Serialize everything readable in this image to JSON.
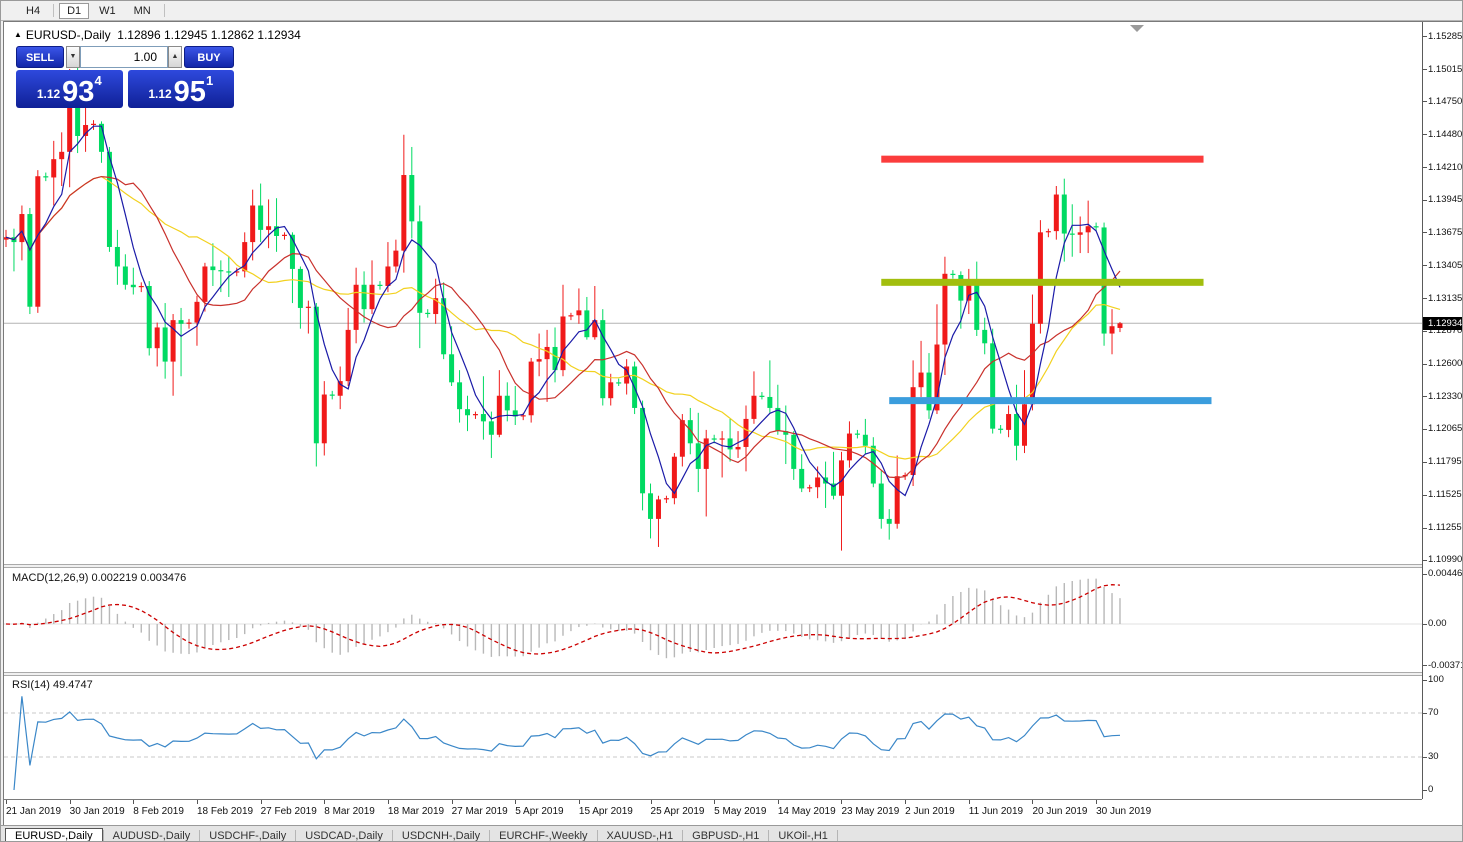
{
  "toolbar": {
    "items": [
      "H4",
      "D1",
      "W1",
      "MN"
    ],
    "active": "D1"
  },
  "trade": {
    "sell_label": "SELL",
    "buy_label": "BUY",
    "lot": "1.00",
    "bid": {
      "prefix": "1.12",
      "big": "93",
      "sup": "4"
    },
    "ask": {
      "prefix": "1.12",
      "big": "95",
      "sup": "1"
    }
  },
  "chart_data": {
    "type": "candlestick",
    "symbol": "EURUSD-,Daily",
    "title_ohlc": "1.12896 1.12945 1.12862 1.12934",
    "current_price": "1.12934",
    "price_axis_labels": [
      "1.15285",
      "1.15015",
      "1.14750",
      "1.14480",
      "1.14210",
      "1.13945",
      "1.13675",
      "1.13405",
      "1.13135",
      "1.12870",
      "1.12600",
      "1.12330",
      "1.12065",
      "1.11795",
      "1.11525",
      "1.11255",
      "1.10990"
    ],
    "date_labels": [
      {
        "i": 0,
        "t": "21 Jan 2019"
      },
      {
        "i": 8,
        "t": "30 Jan 2019"
      },
      {
        "i": 16,
        "t": "8 Feb 2019"
      },
      {
        "i": 24,
        "t": "18 Feb 2019"
      },
      {
        "i": 32,
        "t": "27 Feb 2019"
      },
      {
        "i": 40,
        "t": "8 Mar 2019"
      },
      {
        "i": 48,
        "t": "18 Mar 2019"
      },
      {
        "i": 56,
        "t": "27 Mar 2019"
      },
      {
        "i": 64,
        "t": "5 Apr 2019"
      },
      {
        "i": 72,
        "t": "15 Apr 2019"
      },
      {
        "i": 81,
        "t": "25 Apr 2019"
      },
      {
        "i": 89,
        "t": "5 May 2019"
      },
      {
        "i": 97,
        "t": "14 May 2019"
      },
      {
        "i": 105,
        "t": "23 May 2019"
      },
      {
        "i": 113,
        "t": "2 Jun 2019"
      },
      {
        "i": 121,
        "t": "11 Jun 2019"
      },
      {
        "i": 129,
        "t": "20 Jun 2019"
      },
      {
        "i": 137,
        "t": "30 Jun 2019"
      }
    ],
    "colors": {
      "up_candle": "#f01a1a",
      "down_candle": "#00da62",
      "ma_fast": "#1b1ba8",
      "ma_mid": "#c9312c",
      "ma_slow": "#f2d11f",
      "band_red": "#fb3c3c",
      "band_olive": "#a2be0e",
      "band_blue": "#3b9ddd",
      "current_line": "#b4b4b4",
      "macd_hist": "#b8b8b8",
      "macd_signal": "#cc0000",
      "rsi_line": "#3a87c8"
    },
    "moving_averages": [
      {
        "period": 21,
        "color_key": "ma_slow"
      },
      {
        "period": 13,
        "color_key": "ma_mid"
      },
      {
        "period": 5,
        "color_key": "ma_fast"
      }
    ],
    "bands": [
      {
        "price": 1.1428,
        "i1": 110,
        "i2": 150.5,
        "color_key": "band_red"
      },
      {
        "price": 1.1327,
        "i1": 110,
        "i2": 150.5,
        "color_key": "band_olive"
      },
      {
        "price": 1.123,
        "i1": 111,
        "i2": 151.5,
        "color_key": "band_blue"
      }
    ],
    "candles": [
      [
        1.1362,
        1.137,
        1.1356,
        1.1364
      ],
      [
        1.1364,
        1.1371,
        1.1336,
        1.136
      ],
      [
        1.136,
        1.139,
        1.1345,
        1.1383
      ],
      [
        1.1383,
        1.1388,
        1.1301,
        1.1307
      ],
      [
        1.1307,
        1.1419,
        1.1302,
        1.1414
      ],
      [
        1.1414,
        1.1417,
        1.141,
        1.1413
      ],
      [
        1.1413,
        1.1443,
        1.139,
        1.1428
      ],
      [
        1.1428,
        1.145,
        1.1406,
        1.1434
      ],
      [
        1.1434,
        1.1502,
        1.1405,
        1.1481
      ],
      [
        1.1481,
        1.1514,
        1.1433,
        1.1447
      ],
      [
        1.1447,
        1.1484,
        1.1434,
        1.1456
      ],
      [
        1.1456,
        1.146,
        1.1452,
        1.1457
      ],
      [
        1.1457,
        1.1459,
        1.1425,
        1.1434
      ],
      [
        1.1434,
        1.1438,
        1.1352,
        1.1356
      ],
      [
        1.1356,
        1.137,
        1.1325,
        1.134
      ],
      [
        1.134,
        1.135,
        1.1321,
        1.1325
      ],
      [
        1.1325,
        1.1339,
        1.1317,
        1.1323
      ],
      [
        1.1323,
        1.1327,
        1.1319,
        1.1324
      ],
      [
        1.1324,
        1.1328,
        1.1267,
        1.1273
      ],
      [
        1.1273,
        1.1294,
        1.1258,
        1.129
      ],
      [
        1.129,
        1.131,
        1.1248,
        1.1262
      ],
      [
        1.1262,
        1.1301,
        1.1234,
        1.1296
      ],
      [
        1.1296,
        1.1306,
        1.125,
        1.1293
      ],
      [
        1.1293,
        1.1297,
        1.1289,
        1.1294
      ],
      [
        1.1294,
        1.1316,
        1.1275,
        1.1311
      ],
      [
        1.1311,
        1.1343,
        1.1303,
        1.134
      ],
      [
        1.134,
        1.1359,
        1.1324,
        1.1337
      ],
      [
        1.1337,
        1.1345,
        1.1319,
        1.1336
      ],
      [
        1.1336,
        1.1348,
        1.1315,
        1.1335
      ],
      [
        1.1335,
        1.1339,
        1.1332,
        1.1336
      ],
      [
        1.1336,
        1.1368,
        1.1331,
        1.136
      ],
      [
        1.136,
        1.1403,
        1.1345,
        1.139
      ],
      [
        1.139,
        1.1408,
        1.136,
        1.137
      ],
      [
        1.137,
        1.1395,
        1.1355,
        1.1373
      ],
      [
        1.1373,
        1.1396,
        1.1352,
        1.1365
      ],
      [
        1.1365,
        1.1368,
        1.1362,
        1.1366
      ],
      [
        1.1366,
        1.1368,
        1.131,
        1.1338
      ],
      [
        1.1338,
        1.134,
        1.1289,
        1.1306
      ],
      [
        1.1306,
        1.1312,
        1.1285,
        1.1307
      ],
      [
        1.1307,
        1.131,
        1.1176,
        1.1195
      ],
      [
        1.1195,
        1.1246,
        1.1185,
        1.1235
      ],
      [
        1.1235,
        1.1238,
        1.1231,
        1.1234
      ],
      [
        1.1234,
        1.1258,
        1.1223,
        1.1246
      ],
      [
        1.1246,
        1.1306,
        1.1242,
        1.1288
      ],
      [
        1.1288,
        1.1339,
        1.1277,
        1.1325
      ],
      [
        1.1325,
        1.1336,
        1.1294,
        1.1305
      ],
      [
        1.1305,
        1.1345,
        1.1301,
        1.1325
      ],
      [
        1.1325,
        1.1328,
        1.1321,
        1.1324
      ],
      [
        1.1324,
        1.136,
        1.1319,
        1.134
      ],
      [
        1.134,
        1.1362,
        1.1335,
        1.1353
      ],
      [
        1.1353,
        1.1448,
        1.1335,
        1.1415
      ],
      [
        1.1415,
        1.1438,
        1.1363,
        1.1377
      ],
      [
        1.1377,
        1.139,
        1.1273,
        1.1302
      ],
      [
        1.1302,
        1.1305,
        1.1298,
        1.1301
      ],
      [
        1.1301,
        1.133,
        1.1293,
        1.1314
      ],
      [
        1.1314,
        1.1327,
        1.1264,
        1.1268
      ],
      [
        1.1268,
        1.1291,
        1.1242,
        1.1245
      ],
      [
        1.1245,
        1.1255,
        1.1212,
        1.1223
      ],
      [
        1.1223,
        1.1234,
        1.1205,
        1.1218
      ],
      [
        1.1218,
        1.1221,
        1.1215,
        1.1219
      ],
      [
        1.1219,
        1.125,
        1.1198,
        1.1213
      ],
      [
        1.1213,
        1.1221,
        1.1183,
        1.1202
      ],
      [
        1.1202,
        1.1255,
        1.12,
        1.1234
      ],
      [
        1.1234,
        1.1245,
        1.1213,
        1.1222
      ],
      [
        1.1222,
        1.1242,
        1.121,
        1.1217
      ],
      [
        1.1217,
        1.122,
        1.1214,
        1.1218
      ],
      [
        1.1218,
        1.1265,
        1.1212,
        1.1262
      ],
      [
        1.1262,
        1.1285,
        1.125,
        1.1264
      ],
      [
        1.1264,
        1.1288,
        1.1229,
        1.1274
      ],
      [
        1.1274,
        1.129,
        1.1245,
        1.1255
      ],
      [
        1.1255,
        1.1325,
        1.125,
        1.1299
      ],
      [
        1.1299,
        1.1302,
        1.1296,
        1.13
      ],
      [
        1.13,
        1.1322,
        1.1293,
        1.1304
      ],
      [
        1.1304,
        1.1315,
        1.128,
        1.1282
      ],
      [
        1.1282,
        1.1324,
        1.128,
        1.1296
      ],
      [
        1.1296,
        1.1305,
        1.1226,
        1.1232
      ],
      [
        1.1232,
        1.1252,
        1.1226,
        1.1245
      ],
      [
        1.1245,
        1.1248,
        1.1242,
        1.1244
      ],
      [
        1.1244,
        1.1264,
        1.1235,
        1.1258
      ],
      [
        1.1258,
        1.1262,
        1.1219,
        1.1224
      ],
      [
        1.1224,
        1.123,
        1.114,
        1.1154
      ],
      [
        1.1154,
        1.1162,
        1.1117,
        1.1133
      ],
      [
        1.1133,
        1.1152,
        1.111,
        1.1149
      ],
      [
        1.1149,
        1.1152,
        1.1146,
        1.115
      ],
      [
        1.115,
        1.1187,
        1.1145,
        1.1184
      ],
      [
        1.1184,
        1.1219,
        1.1176,
        1.1214
      ],
      [
        1.1214,
        1.1224,
        1.1186,
        1.1195
      ],
      [
        1.1195,
        1.122,
        1.1155,
        1.1174
      ],
      [
        1.1174,
        1.1206,
        1.1135,
        1.1199
      ],
      [
        1.1199,
        1.1202,
        1.1195,
        1.1198
      ],
      [
        1.1198,
        1.1205,
        1.1167,
        1.1199
      ],
      [
        1.1199,
        1.1215,
        1.118,
        1.119
      ],
      [
        1.119,
        1.1205,
        1.1183,
        1.1192
      ],
      [
        1.1192,
        1.1226,
        1.1172,
        1.1215
      ],
      [
        1.1215,
        1.1254,
        1.1211,
        1.1234
      ],
      [
        1.1234,
        1.1237,
        1.1231,
        1.1233
      ],
      [
        1.1233,
        1.1263,
        1.122,
        1.1224
      ],
      [
        1.1224,
        1.1243,
        1.1202,
        1.1205
      ],
      [
        1.1205,
        1.1226,
        1.1178,
        1.1202
      ],
      [
        1.1202,
        1.1205,
        1.1165,
        1.1174
      ],
      [
        1.1174,
        1.1186,
        1.1155,
        1.1158
      ],
      [
        1.1158,
        1.1161,
        1.1155,
        1.1159
      ],
      [
        1.1159,
        1.1176,
        1.115,
        1.1167
      ],
      [
        1.1167,
        1.118,
        1.1142,
        1.1162
      ],
      [
        1.1162,
        1.1188,
        1.1149,
        1.1152
      ],
      [
        1.1152,
        1.1188,
        1.1107,
        1.1181
      ],
      [
        1.1181,
        1.1213,
        1.1175,
        1.1203
      ],
      [
        1.1203,
        1.1206,
        1.1199,
        1.1202
      ],
      [
        1.1202,
        1.1215,
        1.1186,
        1.1193
      ],
      [
        1.1193,
        1.12,
        1.1159,
        1.1162
      ],
      [
        1.1162,
        1.1173,
        1.1125,
        1.1133
      ],
      [
        1.1133,
        1.1141,
        1.1116,
        1.1129
      ],
      [
        1.1129,
        1.1185,
        1.1125,
        1.1168
      ],
      [
        1.1168,
        1.1171,
        1.1165,
        1.1169
      ],
      [
        1.1169,
        1.1263,
        1.116,
        1.1241
      ],
      [
        1.1241,
        1.1279,
        1.1233,
        1.1253
      ],
      [
        1.1253,
        1.1269,
        1.1215,
        1.1222
      ],
      [
        1.1222,
        1.1309,
        1.1219,
        1.1276
      ],
      [
        1.1276,
        1.1348,
        1.1251,
        1.1334
      ],
      [
        1.1334,
        1.1337,
        1.133,
        1.1333
      ],
      [
        1.1333,
        1.1336,
        1.1289,
        1.1312
      ],
      [
        1.1312,
        1.1338,
        1.1301,
        1.1327
      ],
      [
        1.1327,
        1.1344,
        1.1283,
        1.1288
      ],
      [
        1.1288,
        1.1298,
        1.1268,
        1.1277
      ],
      [
        1.1277,
        1.1289,
        1.1203,
        1.1207
      ],
      [
        1.1207,
        1.121,
        1.1203,
        1.1206
      ],
      [
        1.1206,
        1.1226,
        1.12,
        1.1219
      ],
      [
        1.1219,
        1.1243,
        1.1181,
        1.1193
      ],
      [
        1.1193,
        1.1255,
        1.1187,
        1.1227
      ],
      [
        1.1227,
        1.1317,
        1.1222,
        1.1293
      ],
      [
        1.1293,
        1.1378,
        1.1285,
        1.1368
      ],
      [
        1.1368,
        1.1371,
        1.1364,
        1.1369
      ],
      [
        1.1369,
        1.1406,
        1.1362,
        1.1399
      ],
      [
        1.1399,
        1.1412,
        1.1344,
        1.1367
      ],
      [
        1.1367,
        1.1391,
        1.1348,
        1.1366
      ],
      [
        1.1366,
        1.1381,
        1.1351,
        1.1368
      ],
      [
        1.1368,
        1.1394,
        1.1351,
        1.1373
      ],
      [
        1.1373,
        1.1376,
        1.1369,
        1.1372
      ],
      [
        1.1372,
        1.1376,
        1.1275,
        1.1285
      ],
      [
        1.1285,
        1.1305,
        1.1268,
        1.1291
      ],
      [
        1.12896,
        1.12945,
        1.12862,
        1.12934
      ]
    ],
    "indicators": {
      "macd": {
        "label": "MACD(12,26,9) 0.002219 0.003476",
        "axis_labels": [
          "0.004465",
          "0.00",
          "-0.003715"
        ],
        "fast": 12,
        "slow": 26,
        "signal": 9
      },
      "rsi": {
        "label": "RSI(14) 49.4747",
        "axis_labels": [
          "100",
          "70",
          "30",
          "0"
        ],
        "levels": [
          70,
          30
        ],
        "period": 14
      }
    }
  },
  "tabs": {
    "items": [
      "EURUSD-,Daily",
      "AUDUSD-,Daily",
      "USDCHF-,Daily",
      "USDCAD-,Daily",
      "USDCNH-,Daily",
      "EURCHF-,Weekly",
      "XAUUSD-,H1",
      "GBPUSD-,H1",
      "UKOil-,H1"
    ],
    "active": "EURUSD-,Daily"
  }
}
